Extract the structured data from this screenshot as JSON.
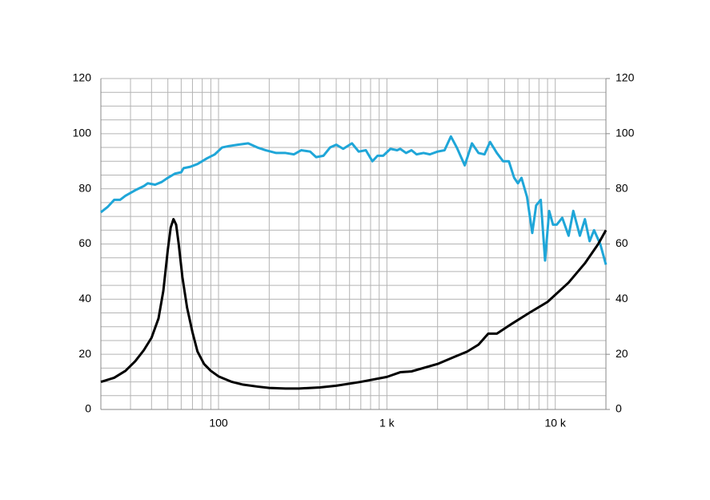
{
  "chart_data": {
    "type": "line",
    "xscale": "log",
    "grid": true,
    "xlim": [
      20,
      20000
    ],
    "ylim": [
      0,
      120
    ],
    "y2lim": [
      0,
      120
    ],
    "xticks": [
      100,
      {
        "value": 1000,
        "label": "1 k"
      },
      {
        "value": 10000,
        "label": "10 k"
      }
    ],
    "x_minor_ticks": [
      20,
      30,
      40,
      50,
      60,
      70,
      80,
      90,
      200,
      300,
      400,
      500,
      600,
      700,
      800,
      900,
      2000,
      3000,
      4000,
      5000,
      6000,
      7000,
      8000,
      9000,
      20000
    ],
    "yticks": [
      0,
      20,
      40,
      60,
      80,
      100,
      120
    ],
    "y2ticks": [
      0,
      20,
      40,
      60,
      80,
      100,
      120
    ],
    "y_minor_ticks": [
      5,
      10,
      15,
      25,
      30,
      35,
      45,
      50,
      55,
      65,
      70,
      75,
      85,
      90,
      95,
      105,
      110,
      115
    ],
    "series": [
      {
        "color": "#1fa6d8",
        "x": [
          20,
          22,
          24,
          26,
          28,
          32,
          36,
          38,
          42,
          46,
          50,
          55,
          60,
          62,
          68,
          75,
          85,
          95,
          105,
          115,
          130,
          150,
          170,
          190,
          220,
          250,
          280,
          310,
          350,
          380,
          420,
          460,
          500,
          550,
          620,
          680,
          750,
          820,
          880,
          950,
          1050,
          1150,
          1200,
          1300,
          1400,
          1500,
          1650,
          1800,
          2000,
          2200,
          2400,
          2600,
          2900,
          3200,
          3500,
          3800,
          4100,
          4500,
          4900,
          5300,
          5700,
          6000,
          6300,
          6800,
          7300,
          7700,
          8200,
          8700,
          9200,
          9700,
          10200,
          11000,
          12000,
          12800,
          14000,
          15000,
          16000,
          17000,
          18500,
          20000
        ],
        "values": [
          71.5,
          73.5,
          76,
          76,
          77.5,
          79.5,
          81,
          82,
          81.5,
          82.5,
          84,
          85.5,
          86,
          87.5,
          88,
          89,
          91,
          92.5,
          95,
          95.5,
          96,
          96.5,
          95,
          94,
          93,
          93,
          92.5,
          94,
          93.5,
          91.5,
          92,
          95,
          96,
          94.5,
          96.5,
          93.5,
          94,
          90,
          92,
          92,
          94.5,
          94,
          94.5,
          93,
          94,
          92.5,
          93,
          92.5,
          93.5,
          94,
          99,
          95,
          88.5,
          96.5,
          93,
          92.5,
          97,
          93,
          90,
          90,
          84,
          82,
          84,
          77,
          64,
          74,
          76,
          54,
          72,
          67,
          67,
          69.5,
          63,
          72,
          63,
          69,
          61,
          65,
          60,
          52.5
        ]
      },
      {
        "color": "#000000",
        "x": [
          20,
          24,
          28,
          32,
          36,
          40,
          44,
          47,
          50,
          52,
          54,
          56,
          58,
          61,
          65,
          70,
          75,
          82,
          90,
          100,
          120,
          140,
          170,
          200,
          250,
          300,
          400,
          500,
          700,
          1000,
          1200,
          1400,
          2000,
          2500,
          3000,
          3500,
          4000,
          4500,
          5500,
          7000,
          9000,
          12000,
          15000,
          18000,
          20000
        ],
        "values": [
          10,
          11.5,
          14,
          17.5,
          21.5,
          26,
          33,
          43,
          58,
          66,
          69,
          67,
          60,
          48,
          37,
          28,
          21,
          16.5,
          14,
          12,
          10,
          9,
          8.3,
          7.8,
          7.6,
          7.6,
          8,
          8.6,
          10,
          11.8,
          13.5,
          13.8,
          16.5,
          19,
          21,
          23.5,
          27.5,
          27.5,
          31,
          35,
          39,
          46,
          53,
          60,
          65
        ]
      }
    ]
  }
}
